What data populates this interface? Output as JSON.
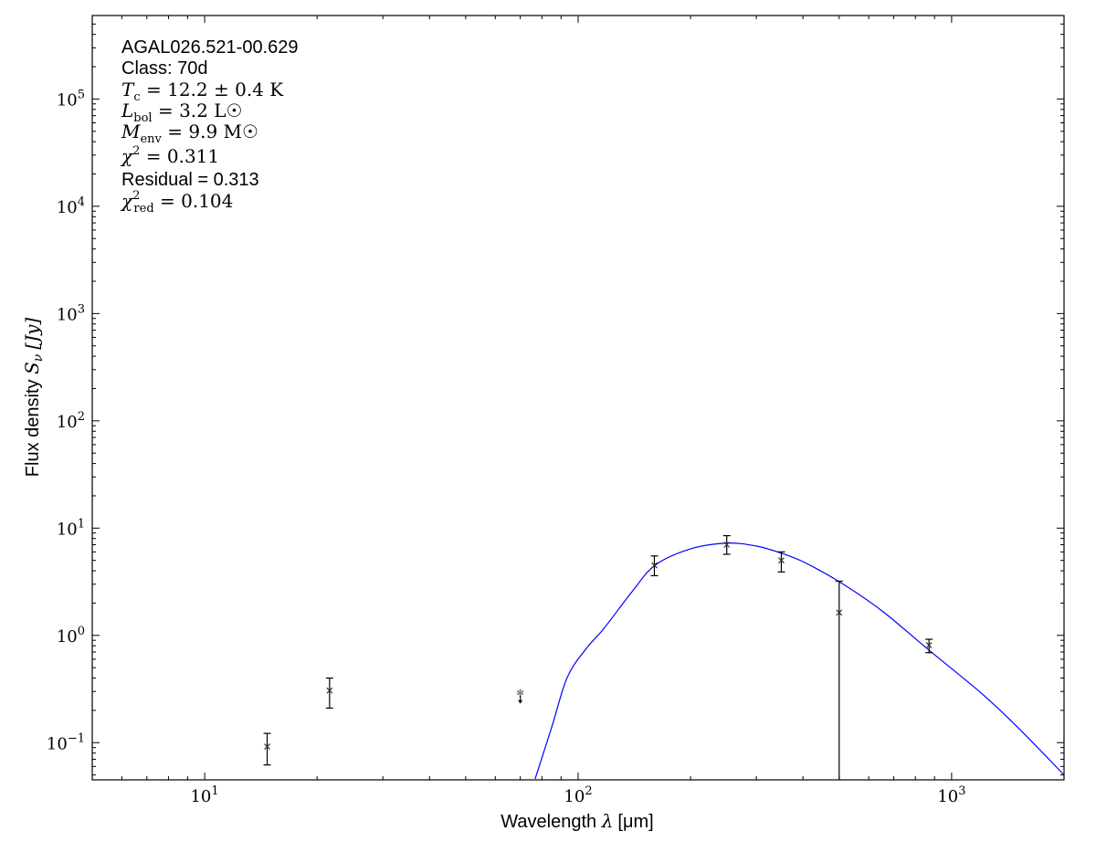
{
  "chart_data": {
    "type": "scatter",
    "title": "",
    "xlabel": {
      "text": "Wavelength ",
      "symbol": "λ",
      "unit": "[μm]"
    },
    "ylabel": {
      "text": "Flux density ",
      "symbol": "S",
      "sub": "ν",
      "unit": "[Jy]"
    },
    "xscale": "log",
    "yscale": "log",
    "xlim": [
      5,
      2000
    ],
    "ylim": [
      0.045,
      600000
    ],
    "grid": false,
    "x_tick_labels": [
      {
        "base": "10",
        "exp": "1",
        "value": 10
      },
      {
        "base": "10",
        "exp": "2",
        "value": 100
      },
      {
        "base": "10",
        "exp": "3",
        "value": 1000
      }
    ],
    "y_tick_labels": [
      {
        "base": "10",
        "exp": "−1",
        "value": 0.1
      },
      {
        "base": "10",
        "exp": "0",
        "value": 1
      },
      {
        "base": "10",
        "exp": "1",
        "value": 10
      },
      {
        "base": "10",
        "exp": "2",
        "value": 100
      },
      {
        "base": "10",
        "exp": "3",
        "value": 1000
      },
      {
        "base": "10",
        "exp": "4",
        "value": 10000
      },
      {
        "base": "10",
        "exp": "5",
        "value": 100000
      }
    ],
    "points": [
      {
        "x": 14.7,
        "y": 0.092,
        "err_low": 0.062,
        "err_high": 0.122
      },
      {
        "x": 21.6,
        "y": 0.306,
        "err_low": 0.21,
        "err_high": 0.4
      },
      {
        "x": 160,
        "y": 4.5,
        "err_low": 3.6,
        "err_high": 5.5
      },
      {
        "x": 250,
        "y": 7.0,
        "err_low": 5.7,
        "err_high": 8.5
      },
      {
        "x": 350,
        "y": 5.0,
        "err_low": 3.9,
        "err_high": 6.0
      },
      {
        "x": 500,
        "y": 1.63,
        "err_low": 0.045,
        "err_high": 3.2
      },
      {
        "x": 870,
        "y": 0.81,
        "err_low": 0.69,
        "err_high": 0.92
      }
    ],
    "upper_limits": [
      {
        "x": 70,
        "y": 0.28
      }
    ],
    "model_curve": {
      "color": "#0000ff",
      "x": [
        76.7,
        85,
        93.5,
        105,
        117,
        140,
        161,
        200,
        250,
        300,
        350,
        403,
        499,
        650,
        869,
        1200,
        1500,
        2000
      ],
      "y": [
        0.046,
        0.14,
        0.406,
        0.75,
        1.15,
        2.6,
        4.53,
        6.4,
        7.25,
        6.8,
        5.84,
        4.8,
        3.18,
        1.7,
        0.73,
        0.29,
        0.14,
        0.05
      ]
    },
    "annotations": [
      {
        "style": "sans",
        "text": "AGAL026.521-00.629"
      },
      {
        "style": "sans",
        "text": "Class: 70d"
      },
      {
        "style": "math",
        "var": "T",
        "sub": "c",
        "sup": "",
        "rest": " = 12.2 ± 0.4 K"
      },
      {
        "style": "math",
        "var": "L",
        "sub": "bol",
        "sup": "",
        "rest": " = 3.2 L☉"
      },
      {
        "style": "math",
        "var": "M",
        "sub": "env",
        "sup": "",
        "rest": " = 9.9 M☉"
      },
      {
        "style": "math",
        "var": "χ",
        "sub": "",
        "sup": "2",
        "rest": " = 0.311"
      },
      {
        "style": "sans",
        "text": "Residual = 0.313"
      },
      {
        "style": "math",
        "var": "χ",
        "sub": "red",
        "sup": "2",
        "rest": " = 0.104"
      }
    ]
  }
}
